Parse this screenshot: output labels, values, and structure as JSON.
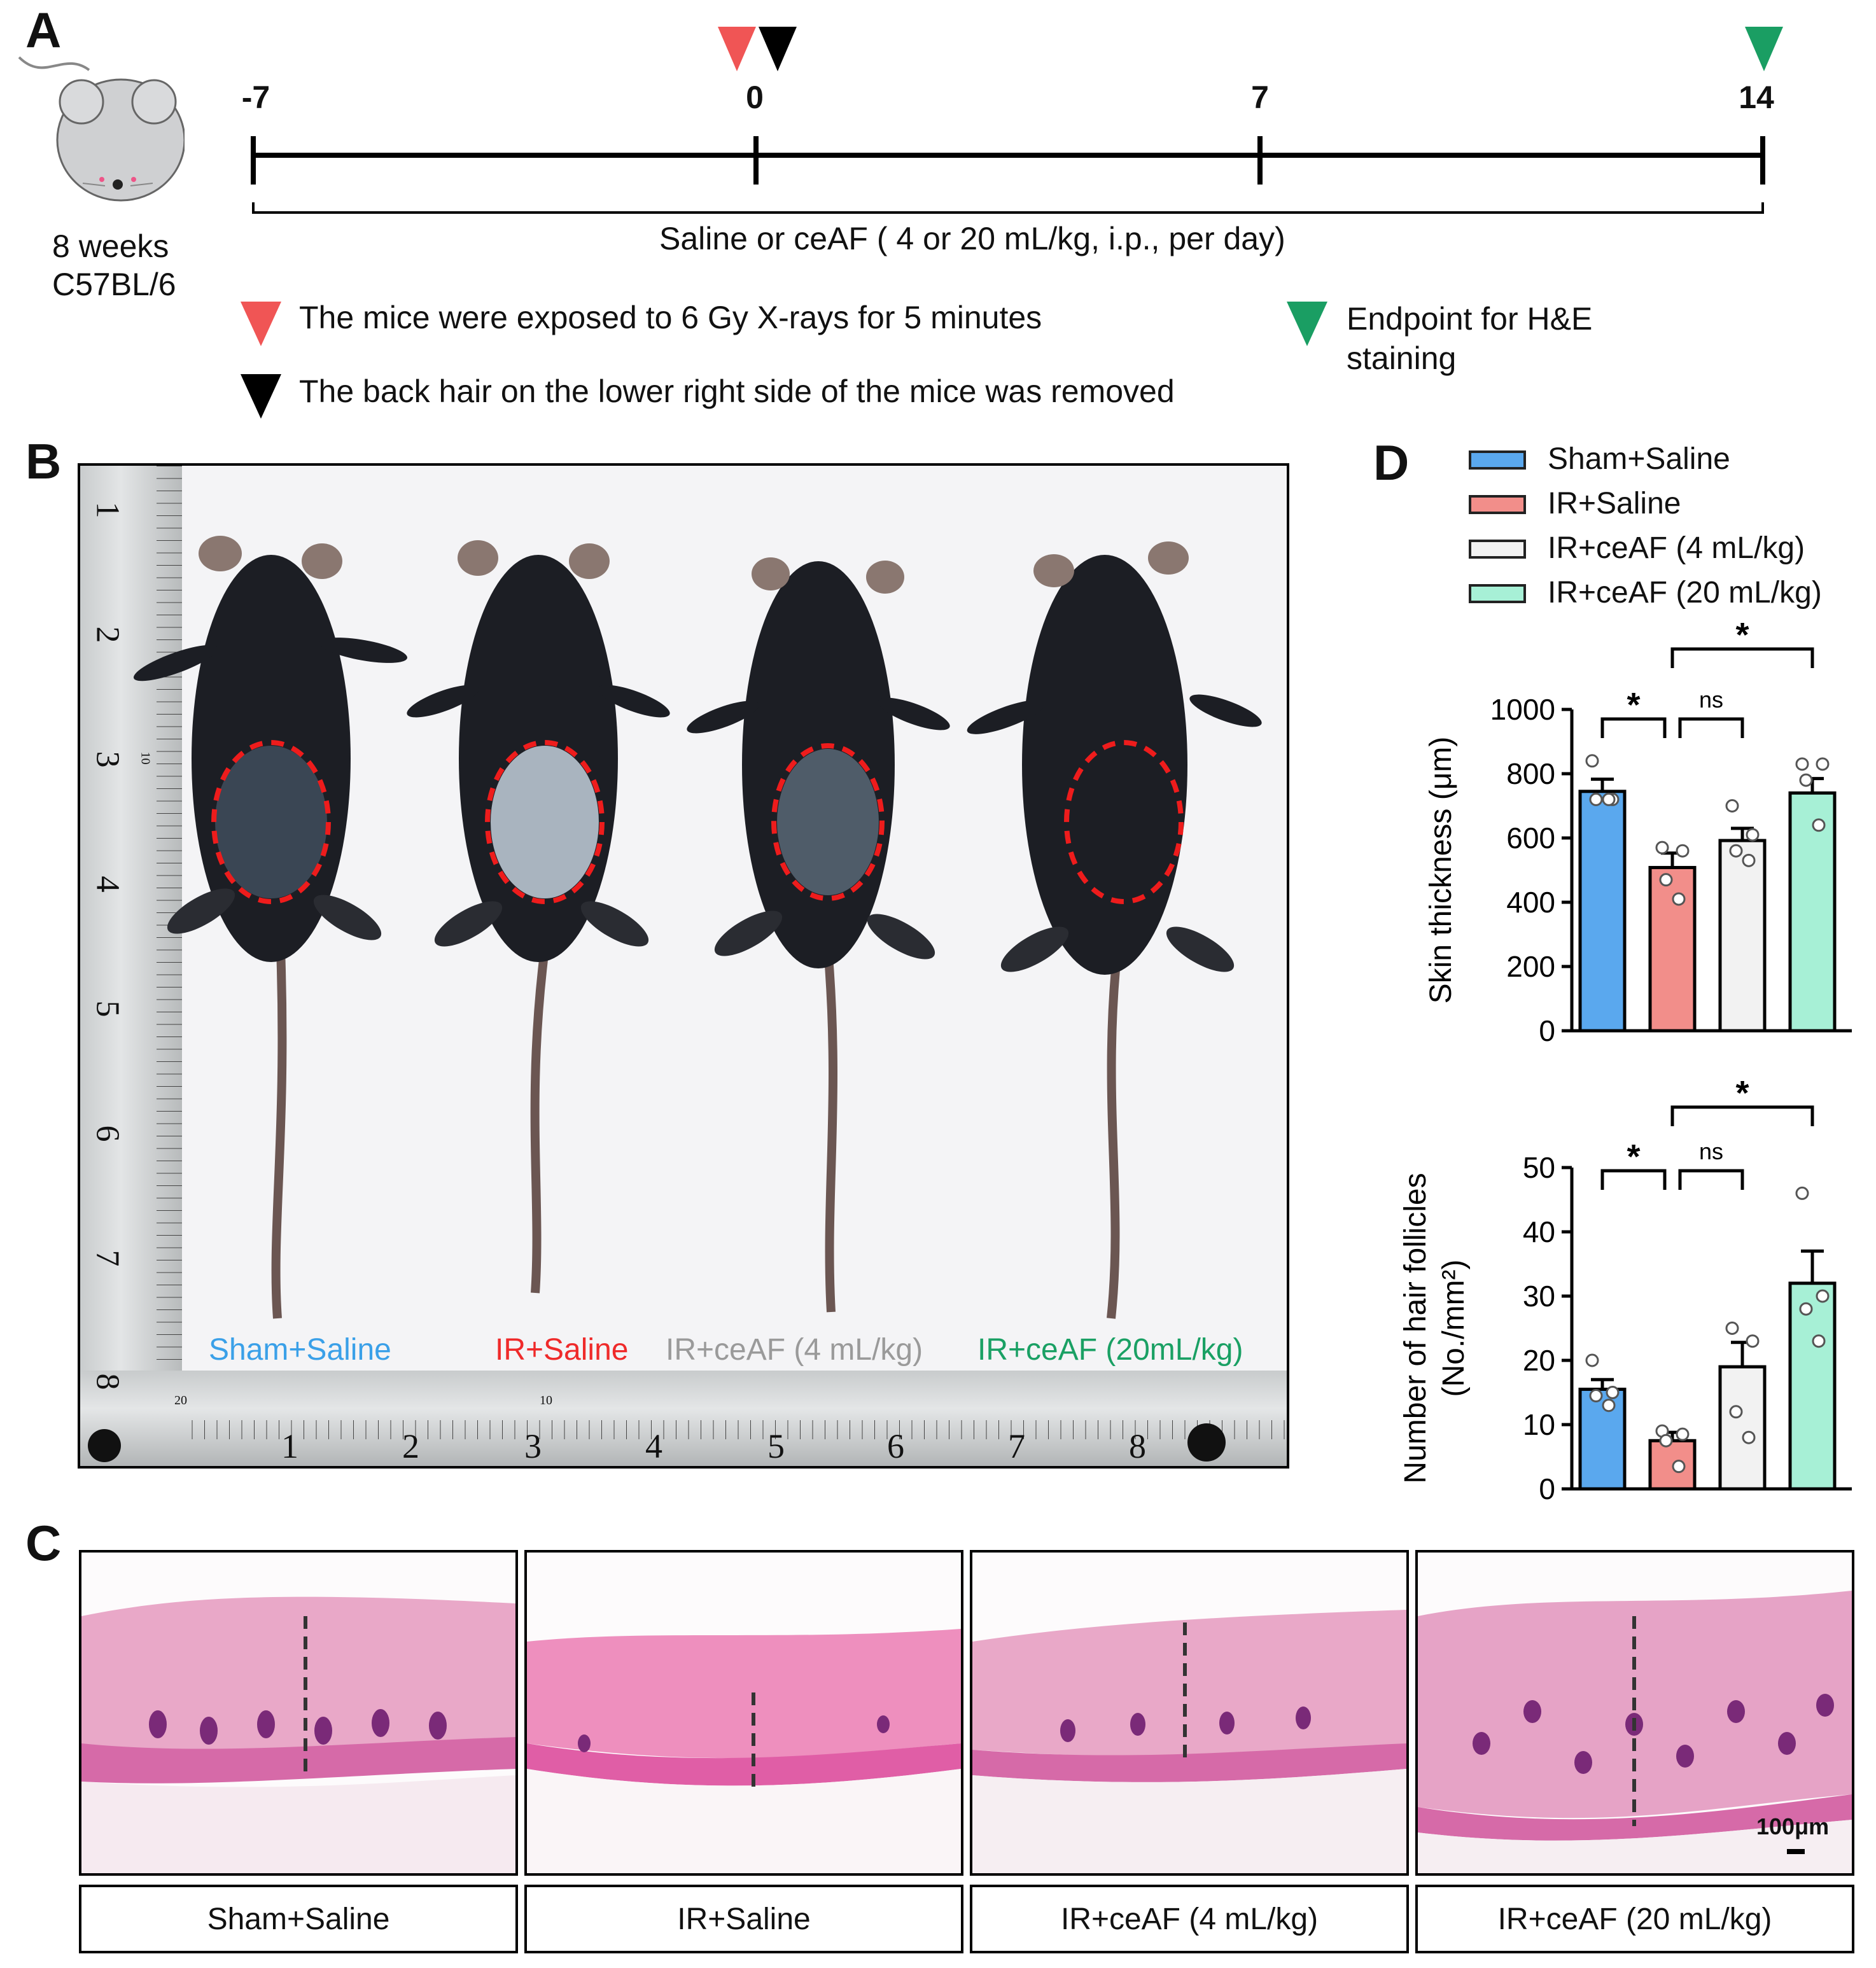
{
  "panels": {
    "a": "A",
    "b": "B",
    "c": "C",
    "d": "D"
  },
  "timeline": {
    "mouse_label_line1": "8 weeks",
    "mouse_label_line2": "C57BL/6",
    "ticks": [
      "-7",
      "0",
      "7",
      "14"
    ],
    "bracket_label": "Saline or ceAF ( 4 or 20 mL/kg, i.p., per day)",
    "legend": {
      "red_text": "The mice were exposed to 6 Gy X-rays for 5 minutes",
      "black_text": "The back hair on the lower right side of the mice was removed",
      "green_text_line1": "Endpoint for H&E",
      "green_text_line2": "staining"
    },
    "colors": {
      "red": "#f05555",
      "black": "#000000",
      "green": "#1a9e63"
    }
  },
  "photo": {
    "ruler_v_numbers": [
      "1",
      "2",
      "3",
      "4",
      "5",
      "6",
      "7",
      "8"
    ],
    "ruler_h_numbers": [
      "1",
      "2",
      "3",
      "4",
      "5",
      "6",
      "7",
      "8"
    ],
    "ruler_small_v": "10",
    "ruler_small_h1": "20",
    "ruler_small_h2": "10",
    "group_labels": [
      {
        "text": "Sham+Saline",
        "color": "#3aa0e8"
      },
      {
        "text": "IR+Saline",
        "color": "#ef2a2a"
      },
      {
        "text": "IR+ceAF (4 mL/kg)",
        "color": "#9a9a9a"
      },
      {
        "text": "IR+ceAF (20mL/kg)",
        "color": "#1aa064"
      }
    ]
  },
  "histology": {
    "labels": [
      "Sham+Saline",
      "IR+Saline",
      "IR+ceAF (4 mL/kg)",
      "IR+ceAF (20 mL/kg)"
    ],
    "scale_bar": "100μm"
  },
  "legend": {
    "items": [
      {
        "label": "Sham+Saline",
        "color": "#5aa8ee"
      },
      {
        "label": "IR+Saline",
        "color": "#f28e8a"
      },
      {
        "label": "IR+ceAF (4 mL/kg)",
        "color": "#f2f2f2"
      },
      {
        "label": "IR+ceAF (20 mL/kg)",
        "color": "#a7f0d6"
      }
    ]
  },
  "chart_data": [
    {
      "type": "bar",
      "title": "",
      "xlabel": "",
      "ylabel": "Skin thickness (μm)",
      "ylim": [
        0,
        1000
      ],
      "yticks": [
        "0",
        "200",
        "400",
        "600",
        "800",
        "1000"
      ],
      "categories": [
        "Sham+Saline",
        "IR+Saline",
        "IR+ceAF (4 mL/kg)",
        "IR+ceAF (20 mL/kg)"
      ],
      "values": [
        745,
        508,
        592,
        740
      ],
      "errors": [
        38,
        45,
        38,
        45
      ],
      "points": [
        [
          840,
          720,
          720,
          720
        ],
        [
          570,
          560,
          470,
          410
        ],
        [
          700,
          610,
          560,
          530
        ],
        [
          830,
          830,
          780,
          640
        ]
      ],
      "comparisons": [
        {
          "from": 0,
          "to": 1,
          "label": "*"
        },
        {
          "from": 1,
          "to": 2,
          "label": "ns"
        },
        {
          "from": 1,
          "to": 3,
          "label": "*"
        }
      ]
    },
    {
      "type": "bar",
      "title": "",
      "xlabel": "",
      "ylabel": "Number of hair follicles",
      "ylabel2": "(No./mm²)",
      "ylim": [
        0,
        50
      ],
      "yticks": [
        "0",
        "10",
        "20",
        "30",
        "40",
        "50"
      ],
      "categories": [
        "Sham+Saline",
        "IR+Saline",
        "IR+ceAF (4 mL/kg)",
        "IR+ceAF (20 mL/kg)"
      ],
      "values": [
        15.5,
        7.5,
        19,
        32
      ],
      "errors": [
        1.5,
        1.3,
        3.8,
        5
      ],
      "points": [
        [
          20,
          15,
          14.5,
          13
        ],
        [
          9,
          8.5,
          7.5,
          3.5
        ],
        [
          25,
          23,
          12,
          8
        ],
        [
          46,
          30,
          28,
          23
        ]
      ],
      "comparisons": [
        {
          "from": 0,
          "to": 1,
          "label": "*"
        },
        {
          "from": 1,
          "to": 2,
          "label": "ns"
        },
        {
          "from": 1,
          "to": 3,
          "label": "*"
        }
      ]
    }
  ]
}
